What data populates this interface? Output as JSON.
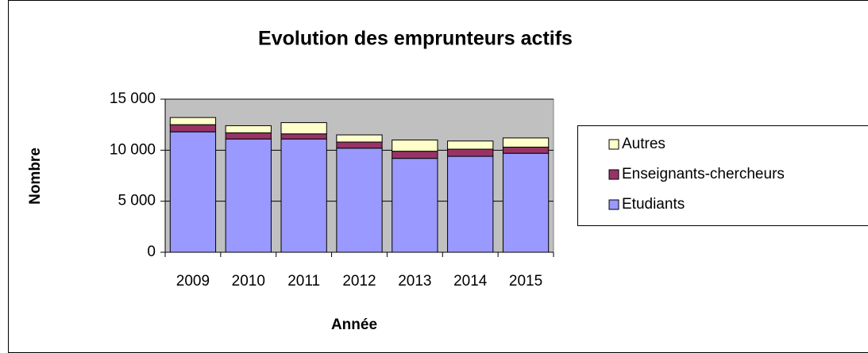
{
  "chart_data": {
    "type": "stacked_bar",
    "title": "Evolution des emprunteurs actifs",
    "x_label": "Année",
    "y_label": "Nombre",
    "categories": [
      "2009",
      "2010",
      "2011",
      "2012",
      "2013",
      "2014",
      "2015"
    ],
    "series": [
      {
        "name": "Etudiants",
        "color": "#9999ff",
        "values": [
          11800,
          11100,
          11100,
          10200,
          9200,
          9400,
          9700
        ]
      },
      {
        "name": "Enseignants-chercheurs",
        "color": "#993366",
        "values": [
          700,
          600,
          500,
          600,
          700,
          700,
          600
        ]
      },
      {
        "name": "Autres",
        "color": "#ffffcc",
        "values": [
          700,
          700,
          1100,
          700,
          1100,
          800,
          900
        ]
      }
    ],
    "ylim": [
      0,
      15000
    ],
    "yticks": [
      0,
      {
        "value": 5000,
        "label": "5 000"
      },
      {
        "value": 10000,
        "label": "10 000"
      },
      {
        "value": 15000,
        "label": "15 000"
      }
    ],
    "grid": true,
    "legend": "right",
    "plot_background": "#c0c0c0"
  }
}
